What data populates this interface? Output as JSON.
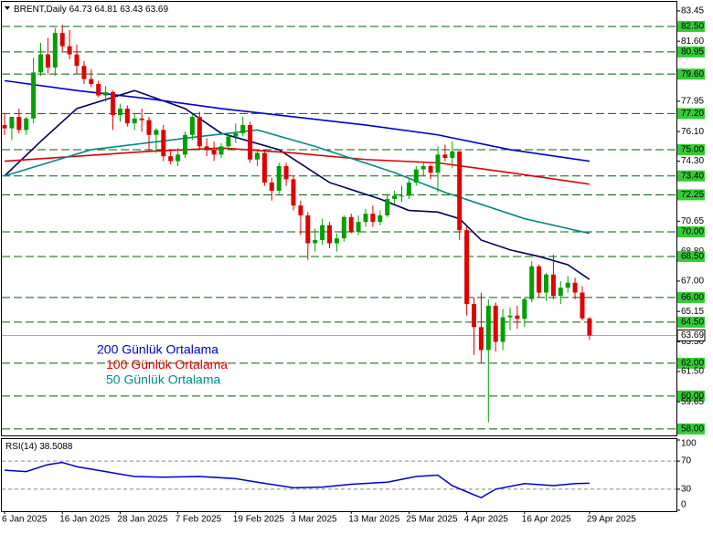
{
  "symbol": "BRENT,Daily",
  "chart_data": {
    "type": "candlestick",
    "categories": [
      "6 Jan 2025",
      null,
      null,
      null,
      null,
      null,
      null,
      null,
      "16 Jan 2025",
      null,
      null,
      null,
      null,
      null,
      null,
      null,
      "28 Jan 2025",
      null,
      null,
      null,
      null,
      null,
      null,
      null,
      "7 Feb 2025",
      null,
      null,
      null,
      null,
      null,
      null,
      null,
      "19 Feb 2025",
      null,
      null,
      null,
      null,
      null,
      null,
      null,
      "3 Mar 2025",
      null,
      null,
      null,
      null,
      null,
      null,
      null,
      "13 Mar 2025",
      null,
      null,
      null,
      null,
      null,
      null,
      null,
      "25 Mar 2025",
      null,
      null,
      null,
      null,
      null,
      null,
      null,
      "4 Apr 2025",
      null,
      null,
      null,
      null,
      null,
      null,
      null,
      "16 Apr 2025",
      null,
      null,
      null,
      null,
      null,
      null,
      null,
      null,
      "29 Apr 2025"
    ],
    "ohlc": [
      [
        76.5,
        77.2,
        75.9,
        76.3
      ],
      [
        76.3,
        77.0,
        75.6,
        77.0
      ],
      [
        77.0,
        77.5,
        76.0,
        76.2
      ],
      [
        76.2,
        77.0,
        75.9,
        76.9
      ],
      [
        76.9,
        80.6,
        76.6,
        79.7
      ],
      [
        79.7,
        81.5,
        79.5,
        80.8
      ],
      [
        80.8,
        81.8,
        79.6,
        80.0
      ],
      [
        80.0,
        82.4,
        79.5,
        82.1
      ],
      [
        82.1,
        82.6,
        81.0,
        81.3
      ],
      [
        81.3,
        82.3,
        80.5,
        80.8
      ],
      [
        80.8,
        81.4,
        79.6,
        80.1
      ],
      [
        80.1,
        80.4,
        79.0,
        79.3
      ],
      [
        79.3,
        79.9,
        78.8,
        79.0
      ],
      [
        79.0,
        79.2,
        78.2,
        78.3
      ],
      [
        78.3,
        78.9,
        77.9,
        78.5
      ],
      [
        78.5,
        78.6,
        76.2,
        77.1
      ],
      [
        77.1,
        77.8,
        76.7,
        77.5
      ],
      [
        77.5,
        77.7,
        76.4,
        76.6
      ],
      [
        76.6,
        77.2,
        76.2,
        76.9
      ],
      [
        76.9,
        77.5,
        76.1,
        76.8
      ],
      [
        76.8,
        77.0,
        74.9,
        75.9
      ],
      [
        75.9,
        76.3,
        74.8,
        76.2
      ],
      [
        76.2,
        76.5,
        74.3,
        74.6
      ],
      [
        74.6,
        75.0,
        74.1,
        74.3
      ],
      [
        74.3,
        75.1,
        74.0,
        74.7
      ],
      [
        74.7,
        76.1,
        74.5,
        75.9
      ],
      [
        75.9,
        77.2,
        75.6,
        77.0
      ],
      [
        77.0,
        77.3,
        75.0,
        75.2
      ],
      [
        75.2,
        75.7,
        74.6,
        75.0
      ],
      [
        75.0,
        75.5,
        74.3,
        74.7
      ],
      [
        74.7,
        75.4,
        74.5,
        75.2
      ],
      [
        75.2,
        76.0,
        75.0,
        75.8
      ],
      [
        75.8,
        76.6,
        75.4,
        76.0
      ],
      [
        76.0,
        77.0,
        75.8,
        76.5
      ],
      [
        76.5,
        76.7,
        74.2,
        74.4
      ],
      [
        74.4,
        75.0,
        74.0,
        74.8
      ],
      [
        74.8,
        74.9,
        72.8,
        73.0
      ],
      [
        73.0,
        73.3,
        71.9,
        72.5
      ],
      [
        72.5,
        74.2,
        72.3,
        74.0
      ],
      [
        74.0,
        74.2,
        72.8,
        73.2
      ],
      [
        73.2,
        73.4,
        71.3,
        71.6
      ],
      [
        71.6,
        71.9,
        69.8,
        71.0
      ],
      [
        71.0,
        71.2,
        68.3,
        69.3
      ],
      [
        69.3,
        70.2,
        68.8,
        69.5
      ],
      [
        69.5,
        70.8,
        69.2,
        70.4
      ],
      [
        70.4,
        70.6,
        69.0,
        69.3
      ],
      [
        69.3,
        69.9,
        68.8,
        69.6
      ],
      [
        69.6,
        71.0,
        69.4,
        70.9
      ],
      [
        70.9,
        71.1,
        69.9,
        70.0
      ],
      [
        70.0,
        71.0,
        69.8,
        70.6
      ],
      [
        70.6,
        71.4,
        70.3,
        71.1
      ],
      [
        71.1,
        71.6,
        70.3,
        70.6
      ],
      [
        70.6,
        71.3,
        70.4,
        71.0
      ],
      [
        71.0,
        72.3,
        70.9,
        72.0
      ],
      [
        72.0,
        72.5,
        71.7,
        72.2
      ],
      [
        72.2,
        72.8,
        71.8,
        72.2
      ],
      [
        72.2,
        73.2,
        72.0,
        73.0
      ],
      [
        73.0,
        74.0,
        72.8,
        73.8
      ],
      [
        73.8,
        74.2,
        73.4,
        74.0
      ],
      [
        74.0,
        74.1,
        73.2,
        73.6
      ],
      [
        73.6,
        75.2,
        72.4,
        74.7
      ],
      [
        74.7,
        75.3,
        74.3,
        74.5
      ],
      [
        74.5,
        75.5,
        73.9,
        74.9
      ],
      [
        74.9,
        74.9,
        69.5,
        70.1
      ],
      [
        70.1,
        70.3,
        64.9,
        65.6
      ],
      [
        65.6,
        66.0,
        62.5,
        64.2
      ],
      [
        64.2,
        66.3,
        62.0,
        62.8
      ],
      [
        62.8,
        65.9,
        58.4,
        65.5
      ],
      [
        65.5,
        65.7,
        62.7,
        63.3
      ],
      [
        63.3,
        65.3,
        62.8,
        64.8
      ],
      [
        64.8,
        65.4,
        64.0,
        64.9
      ],
      [
        64.9,
        65.5,
        64.1,
        64.7
      ],
      [
        64.7,
        66.0,
        64.2,
        65.9
      ],
      [
        65.9,
        68.2,
        65.7,
        67.9
      ],
      [
        67.9,
        68.0,
        66.0,
        66.3
      ],
      [
        66.3,
        67.5,
        65.8,
        67.4
      ],
      [
        67.4,
        68.6,
        65.9,
        66.1
      ],
      [
        66.1,
        67.0,
        65.6,
        66.6
      ],
      [
        66.6,
        67.3,
        66.3,
        66.9
      ],
      [
        66.9,
        67.2,
        65.9,
        66.3
      ],
      [
        66.3,
        66.7,
        64.6,
        64.73
      ],
      [
        64.73,
        64.81,
        63.43,
        63.69
      ]
    ],
    "up_color": "#00a000",
    "down_color": "#e00000",
    "ylim": [
      57.55,
      84.0
    ],
    "yticks": [
      {
        "value": 83.45,
        "label": "83.45"
      },
      {
        "value": 82.5,
        "label": "82.50"
      },
      {
        "value": 81.6,
        "label": "81.60"
      },
      {
        "value": 80.95,
        "label": "80.95"
      },
      {
        "value": 79.6,
        "label": "79.60"
      },
      {
        "value": 77.95,
        "label": "77.95"
      },
      {
        "value": 77.2,
        "label": "77.20"
      },
      {
        "value": 76.1,
        "label": "76.10"
      },
      {
        "value": 75,
        "label": "75.00"
      },
      {
        "value": 74.3,
        "label": "74.30"
      },
      {
        "value": 73.4,
        "label": "73.40"
      },
      {
        "value": 72.25,
        "label": "72.25"
      },
      {
        "value": 70.65,
        "label": "70.65"
      },
      {
        "value": 70,
        "label": "70.00"
      },
      {
        "value": 68.8,
        "label": "68.80"
      },
      {
        "value": 68.5,
        "label": "68.50"
      },
      {
        "value": 67,
        "label": "67.00"
      },
      {
        "value": 66,
        "label": "66.00"
      },
      {
        "value": 65.15,
        "label": "65.15"
      },
      {
        "value": 64.5,
        "label": "64.50"
      },
      {
        "value": 63.3,
        "label": "63.30"
      },
      {
        "value": 62,
        "label": "62.00"
      },
      {
        "value": 61.5,
        "label": "61.50"
      },
      {
        "value": 60,
        "label": "60.00"
      },
      {
        "value": 59.65,
        "label": "59.65"
      },
      {
        "value": 58,
        "label": "58.00"
      }
    ],
    "level_lines": [
      82.5,
      80.95,
      79.6,
      77.2,
      75,
      73.4,
      72.25,
      70,
      68.5,
      66,
      64.5,
      62,
      60,
      58
    ],
    "level_color": "#006400",
    "box_color": "#33cc33",
    "moving_averages": [
      {
        "color": "#000066",
        "x": [
          0,
          5,
          10,
          18,
          25,
          30,
          38,
          45,
          52,
          56,
          60,
          63,
          66,
          70,
          74,
          78,
          81
        ],
        "values": [
          73.4,
          75.5,
          77.5,
          78.6,
          77.5,
          76.0,
          75.0,
          73.0,
          72.0,
          71.3,
          71.2,
          70.8,
          69.5,
          68.9,
          68.5,
          68.0,
          67.1
        ]
      },
      {
        "name": "200 Günlük Ortalama",
        "color": "#0000cc",
        "x": [
          0,
          10,
          20,
          30,
          40,
          50,
          60,
          70,
          81
        ],
        "values": [
          79.2,
          78.6,
          78.1,
          77.5,
          77.0,
          76.5,
          75.9,
          75.0,
          74.3
        ]
      },
      {
        "name": "100 Günlük Ortalama",
        "color": "#dd0000",
        "x": [
          0,
          10,
          20,
          30,
          40,
          50,
          60,
          70,
          81
        ],
        "values": [
          74.3,
          74.6,
          74.9,
          75.1,
          74.8,
          74.4,
          74.2,
          73.6,
          72.9
        ]
      },
      {
        "name": "50 Günlük Ortalama",
        "color": "#008b8b",
        "x": [
          0,
          12,
          27,
          35,
          43,
          54,
          61,
          72,
          81
        ],
        "values": [
          73.4,
          75.0,
          75.8,
          76.2,
          75.2,
          73.6,
          72.4,
          70.8,
          69.9
        ]
      }
    ],
    "rsi": {
      "title": "RSI(14)",
      "value": 38.5088,
      "color": "#0000cc",
      "ylim": [
        0,
        100
      ],
      "yticks": [
        0,
        30,
        70,
        100
      ],
      "levels": [
        30,
        70
      ],
      "x": [
        0,
        3,
        6,
        8,
        10,
        14,
        18,
        22,
        27,
        32,
        35,
        40,
        44,
        48,
        53,
        57,
        60,
        62,
        65,
        66,
        68,
        72,
        76,
        79,
        81
      ],
      "values": [
        57,
        55,
        65,
        68,
        62,
        55,
        48,
        47,
        48,
        45,
        40,
        32,
        33,
        37,
        40,
        48,
        50,
        35,
        22,
        18,
        30,
        38,
        35,
        38,
        38.5088
      ]
    }
  }
}
